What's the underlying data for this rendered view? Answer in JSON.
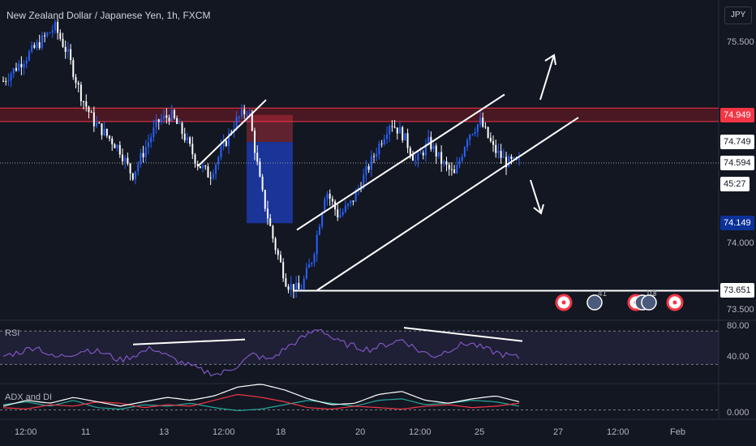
{
  "title": "New Zealand Dollar / Japanese Yen, 1h, FXCM",
  "currency_button": "JPY",
  "colors": {
    "background": "#131722",
    "candle_up": "#2962ff",
    "candle_down": "#ffffff",
    "resistance_zone": "#801922",
    "rsi_line": "#7e57c2",
    "adx_line": "#ffffff",
    "di_plus": "#26a69a",
    "di_minus": "#f23645"
  },
  "price_axis": {
    "ticks": [
      "75.500",
      "74.000",
      "73.500"
    ]
  },
  "price_badges": [
    {
      "name": "resistance-level-badge",
      "text": "74.949",
      "bg": "#f23645",
      "fg": "#ffffff",
      "price": 74.949
    },
    {
      "name": "high-level-badge",
      "text": "74.749",
      "bg": "#ffffff",
      "fg": "#131722",
      "price": 74.749
    },
    {
      "name": "last-price-badge",
      "text": "74.594",
      "bg": "#ffffff",
      "fg": "#131722",
      "price": 74.594
    },
    {
      "name": "countdown-badge",
      "text": "45:27",
      "bg": "#ffffff",
      "fg": "#131722",
      "price": 74.44
    },
    {
      "name": "target-level-badge",
      "text": "74.149",
      "bg": "#0c3299",
      "fg": "#ffffff",
      "price": 74.149
    },
    {
      "name": "support-level-badge",
      "text": "73.651",
      "bg": "#ffffff",
      "fg": "#131722",
      "price": 73.651
    }
  ],
  "time_axis": {
    "ticks": [
      "12:00",
      "11",
      "13",
      "12:00",
      "18",
      "20",
      "12:00",
      "25",
      "27",
      "12:00",
      "Feb"
    ]
  },
  "rsi_pane": {
    "label": "RSI",
    "ticks": [
      "80.00",
      "40.00"
    ]
  },
  "adx_pane": {
    "label": "ADX and DI",
    "ticks": [
      "0.000"
    ]
  },
  "event_markers": [
    {
      "label": "",
      "kind": "red"
    },
    {
      "label": "41",
      "kind": "flag"
    },
    {
      "label": "",
      "kind": "red"
    },
    {
      "label": "10",
      "kind": "flag"
    },
    {
      "label": "3",
      "kind": "flag"
    },
    {
      "label": "",
      "kind": "red"
    }
  ],
  "chart_data": {
    "type": "candlestick",
    "symbol": "NZDJPY",
    "interval": "1h",
    "y_range": [
      73.45,
      75.75
    ],
    "y_ticks": [
      75.5,
      74.0,
      73.5
    ],
    "resistance_zone": [
      74.9,
      75.0
    ],
    "support_level": 73.651,
    "last_price": 74.594,
    "trade_box": {
      "entry": 74.749,
      "stop": 74.949,
      "target": 74.149
    },
    "close_path": [
      75.2,
      75.3,
      75.4,
      75.5,
      75.6,
      75.4,
      75.1,
      74.9,
      74.8,
      74.7,
      74.5,
      74.7,
      74.9,
      74.95,
      74.8,
      74.6,
      74.5,
      74.7,
      74.9,
      75.0,
      74.4,
      74.0,
      73.7,
      73.65,
      73.9,
      74.4,
      74.2,
      74.3,
      74.5,
      74.7,
      74.9,
      74.8,
      74.6,
      74.75,
      74.6,
      74.5,
      74.8,
      74.9,
      74.7,
      74.6,
      74.594
    ],
    "rsi_range": [
      20,
      90
    ],
    "rsi_ticks": [
      80,
      40
    ],
    "rsi_path": [
      50,
      55,
      62,
      48,
      52,
      58,
      54,
      45,
      52,
      60,
      48,
      40,
      32,
      28,
      38,
      52,
      45,
      60,
      72,
      84,
      68,
      62,
      58,
      64,
      70,
      56,
      50,
      60,
      66,
      58,
      52,
      48
    ],
    "adx_path": [
      0.5,
      0.9,
      0.7,
      1.1,
      0.8,
      0.5,
      0.8,
      1.1,
      0.9,
      1.2,
      1.8,
      2.0,
      1.6,
      1.0,
      0.6,
      0.7,
      1.3,
      1.5,
      0.9,
      0.7,
      1.0,
      1.2,
      0.8
    ],
    "di_plus_path": [
      0.6,
      0.8,
      0.5,
      0.9,
      0.4,
      0.3,
      0.6,
      0.5,
      0.7,
      0.4,
      0.2,
      0.3,
      0.6,
      0.9,
      0.7,
      0.5,
      0.9,
      1.0,
      0.6,
      0.7,
      0.9,
      0.8,
      0.5
    ],
    "di_minus_path": [
      0.4,
      0.3,
      0.6,
      0.5,
      0.8,
      0.7,
      0.4,
      0.6,
      0.5,
      0.9,
      1.3,
      1.1,
      0.8,
      0.4,
      0.3,
      0.5,
      0.4,
      0.3,
      0.5,
      0.6,
      0.4,
      0.5,
      0.7
    ]
  }
}
